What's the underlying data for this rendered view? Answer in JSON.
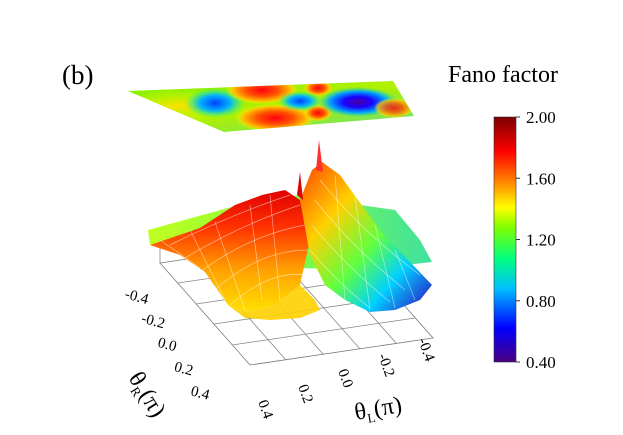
{
  "panel_label": "(b)",
  "colorbar": {
    "title": "Fano factor",
    "ticks": [
      "2.00",
      "1.60",
      "1.20",
      "0.80",
      "0.40"
    ],
    "min": 0.4,
    "max": 2.0,
    "colormap": [
      "#4b0082",
      "#0000ff",
      "#00c0ff",
      "#00ff80",
      "#80ff00",
      "#ffff00",
      "#ff8000",
      "#ff0000",
      "#7a0000"
    ]
  },
  "chart_data": {
    "type": "surface3d",
    "title": "Fano factor",
    "xlabel": "θ_L (π)",
    "ylabel": "θ_R (π)",
    "x_ticks": [
      "-0.4",
      "-0.2",
      "0.0",
      "0.2",
      "0.4"
    ],
    "y_ticks": [
      "-0.4",
      "-0.2",
      "0.0",
      "0.2",
      "0.4"
    ],
    "xlim": [
      -0.5,
      0.5
    ],
    "ylim": [
      -0.5,
      0.5
    ],
    "zlim": [
      0.4,
      2.0
    ],
    "projection": "contour map shown on top plane",
    "grid": true
  }
}
